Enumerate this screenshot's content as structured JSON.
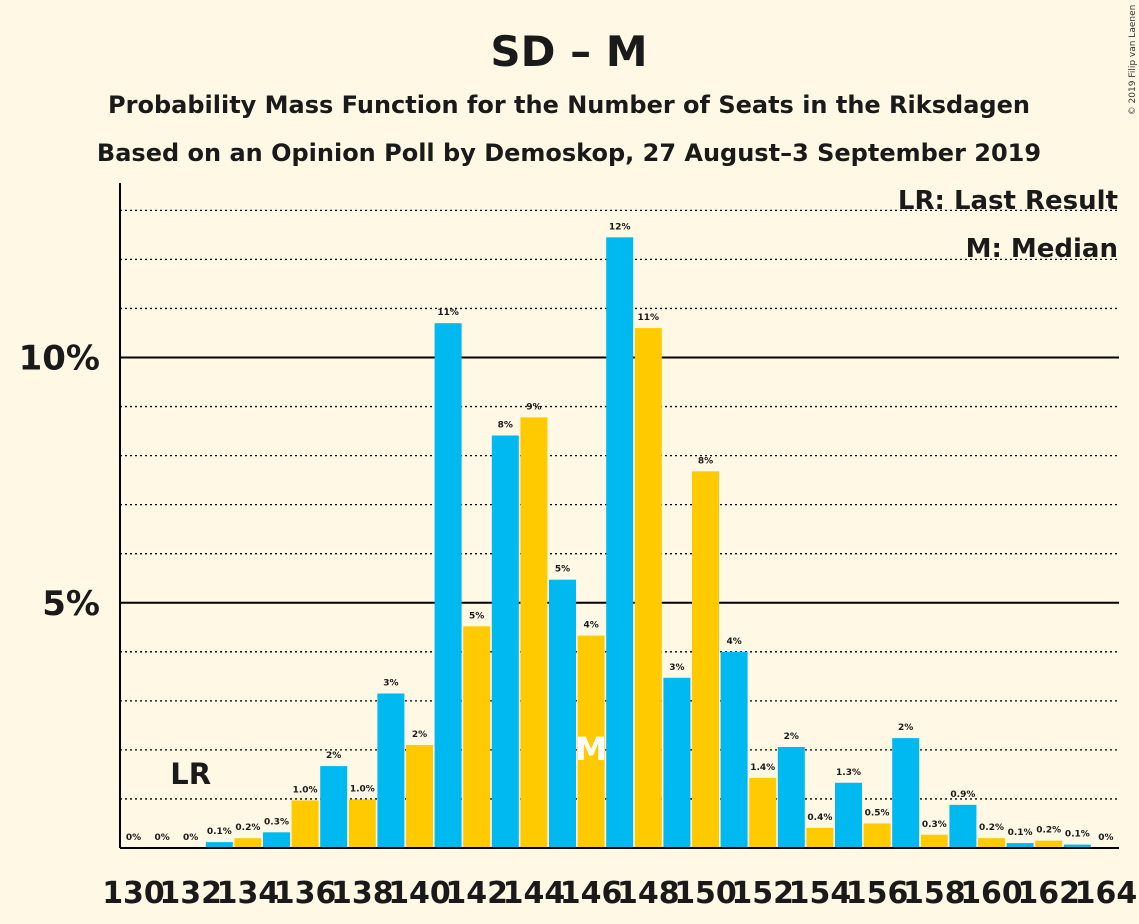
{
  "chart_data": {
    "type": "bar",
    "title": "SD – M",
    "subtitle_1": "Probability Mass Function for the Number of Seats in the Riksdagen",
    "subtitle_2": "Based on an Opinion Poll by Demoskop, 27 August–3 September 2019",
    "copyright": "© 2019 Filip van Laenen",
    "legend": [
      "LR: Last Result",
      "M: Median"
    ],
    "ylim": [
      0,
      13.5
    ],
    "y_tick_labels": [
      {
        "value": 5,
        "label": "5%"
      },
      {
        "value": 10,
        "label": "10%"
      }
    ],
    "x_tick_labels": [
      "130",
      "132",
      "134",
      "136",
      "138",
      "140",
      "142",
      "144",
      "146",
      "148",
      "150",
      "152",
      "154",
      "156",
      "158",
      "160",
      "162",
      "164"
    ],
    "last_result_seat": 132,
    "last_result_label": "LR",
    "median_seat": 146,
    "median_label": "M",
    "colors": {
      "odd": "#00b9f0",
      "even": "#ffcb00",
      "background": "#fff8e5",
      "text": "#1a1a1a"
    },
    "bars": [
      {
        "seat": 130,
        "value": 0,
        "label": "0%"
      },
      {
        "seat": 131,
        "value": 0,
        "label": "0%"
      },
      {
        "seat": 132,
        "value": 0,
        "label": "0%"
      },
      {
        "seat": 133,
        "value": 0.12,
        "label": "0.1%"
      },
      {
        "seat": 134,
        "value": 0.2,
        "label": "0.2%"
      },
      {
        "seat": 135,
        "value": 0.32,
        "label": "0.3%"
      },
      {
        "seat": 136,
        "value": 0.97,
        "label": "1.0%"
      },
      {
        "seat": 137,
        "value": 1.67,
        "label": "2%"
      },
      {
        "seat": 138,
        "value": 0.99,
        "label": "1.0%"
      },
      {
        "seat": 139,
        "value": 3.15,
        "label": "3%"
      },
      {
        "seat": 140,
        "value": 2.1,
        "label": "2%"
      },
      {
        "seat": 141,
        "value": 10.7,
        "label": "11%"
      },
      {
        "seat": 142,
        "value": 4.52,
        "label": "5%"
      },
      {
        "seat": 143,
        "value": 8.41,
        "label": "8%"
      },
      {
        "seat": 144,
        "value": 8.78,
        "label": "9%"
      },
      {
        "seat": 145,
        "value": 5.47,
        "label": "5%"
      },
      {
        "seat": 146,
        "value": 4.33,
        "label": "4%"
      },
      {
        "seat": 147,
        "value": 12.45,
        "label": "12%"
      },
      {
        "seat": 148,
        "value": 10.6,
        "label": "11%"
      },
      {
        "seat": 149,
        "value": 3.47,
        "label": "3%"
      },
      {
        "seat": 150,
        "value": 7.68,
        "label": "8%"
      },
      {
        "seat": 151,
        "value": 4.0,
        "label": "4%"
      },
      {
        "seat": 152,
        "value": 1.43,
        "label": "1.4%"
      },
      {
        "seat": 153,
        "value": 2.06,
        "label": "2%"
      },
      {
        "seat": 154,
        "value": 0.41,
        "label": "0.4%"
      },
      {
        "seat": 155,
        "value": 1.33,
        "label": "1.3%"
      },
      {
        "seat": 156,
        "value": 0.5,
        "label": "0.5%"
      },
      {
        "seat": 157,
        "value": 2.24,
        "label": "2%"
      },
      {
        "seat": 158,
        "value": 0.27,
        "label": "0.3%"
      },
      {
        "seat": 159,
        "value": 0.88,
        "label": "0.9%"
      },
      {
        "seat": 160,
        "value": 0.2,
        "label": "0.2%"
      },
      {
        "seat": 161,
        "value": 0.1,
        "label": "0.1%"
      },
      {
        "seat": 162,
        "value": 0.15,
        "label": "0.2%"
      },
      {
        "seat": 163,
        "value": 0.07,
        "label": "0.1%"
      },
      {
        "seat": 164,
        "value": 0,
        "label": "0%"
      }
    ]
  }
}
